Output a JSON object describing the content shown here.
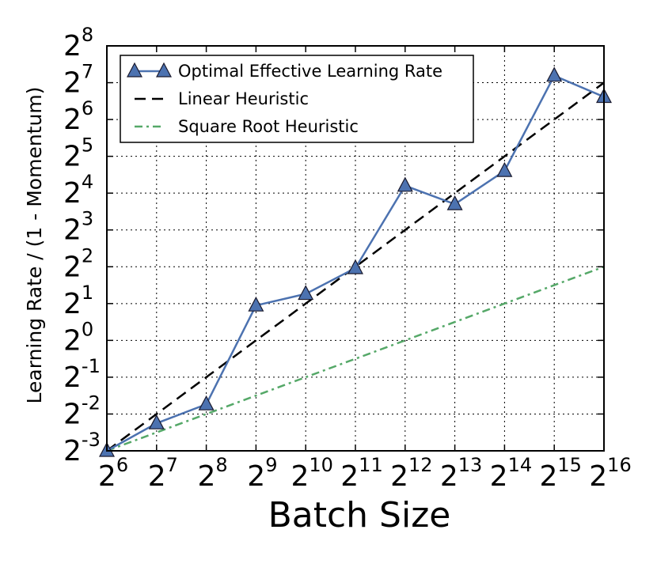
{
  "chart_data": {
    "type": "line",
    "title": "",
    "xlabel": "Batch Size",
    "ylabel": "Learning Rate / (1 - Momentum)",
    "x_scale": "log2",
    "y_scale": "log2",
    "xlim": [
      64,
      65536
    ],
    "ylim": [
      0.125,
      256
    ],
    "x_ticks": [
      {
        "base": "2",
        "exp": "6"
      },
      {
        "base": "2",
        "exp": "7"
      },
      {
        "base": "2",
        "exp": "8"
      },
      {
        "base": "2",
        "exp": "9"
      },
      {
        "base": "2",
        "exp": "10"
      },
      {
        "base": "2",
        "exp": "11"
      },
      {
        "base": "2",
        "exp": "12"
      },
      {
        "base": "2",
        "exp": "13"
      },
      {
        "base": "2",
        "exp": "14"
      },
      {
        "base": "2",
        "exp": "15"
      },
      {
        "base": "2",
        "exp": "16"
      }
    ],
    "y_ticks": [
      {
        "base": "2",
        "exp": "-3"
      },
      {
        "base": "2",
        "exp": "-2"
      },
      {
        "base": "2",
        "exp": "-1"
      },
      {
        "base": "2",
        "exp": "0"
      },
      {
        "base": "2",
        "exp": "1"
      },
      {
        "base": "2",
        "exp": "2"
      },
      {
        "base": "2",
        "exp": "3"
      },
      {
        "base": "2",
        "exp": "4"
      },
      {
        "base": "2",
        "exp": "5"
      },
      {
        "base": "2",
        "exp": "6"
      },
      {
        "base": "2",
        "exp": "7"
      },
      {
        "base": "2",
        "exp": "8"
      }
    ],
    "grid": true,
    "legend_position": "top-left",
    "series": [
      {
        "name": "Optimal Effective Learning Rate",
        "style": "solid-triangle-markers",
        "color": "#4c72b0",
        "x": [
          64,
          128,
          256,
          512,
          1024,
          2048,
          4096,
          8192,
          16384,
          32768,
          65536
        ],
        "y": [
          0.125,
          0.21,
          0.3,
          1.93,
          2.4,
          3.9,
          18.4,
          13.0,
          24.3,
          146,
          98
        ]
      },
      {
        "name": "Linear Heuristic",
        "style": "dashed",
        "color": "#000000",
        "x": [
          64,
          65536
        ],
        "y": [
          0.125,
          128
        ]
      },
      {
        "name": "Square Root Heuristic",
        "style": "dash-dot",
        "color": "#55a868",
        "x": [
          64,
          65536
        ],
        "y": [
          0.125,
          4.0
        ]
      }
    ]
  }
}
